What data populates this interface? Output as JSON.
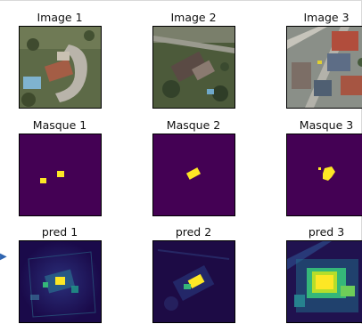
{
  "figure": {
    "rows": [
      {
        "kind": "image",
        "titles": [
          "Image 1",
          "Image 2",
          "Image 3"
        ]
      },
      {
        "kind": "mask",
        "titles": [
          "Masque 1",
          "Masque 2",
          "Masque 3"
        ]
      },
      {
        "kind": "pred",
        "titles": [
          "pred 1",
          "pred 2",
          "pred 3"
        ]
      }
    ]
  },
  "colors": {
    "mask_background": "#440154",
    "mask_foreground": "#fde725",
    "pred_low": "#3b0f70",
    "pred_high": "#fde725"
  }
}
